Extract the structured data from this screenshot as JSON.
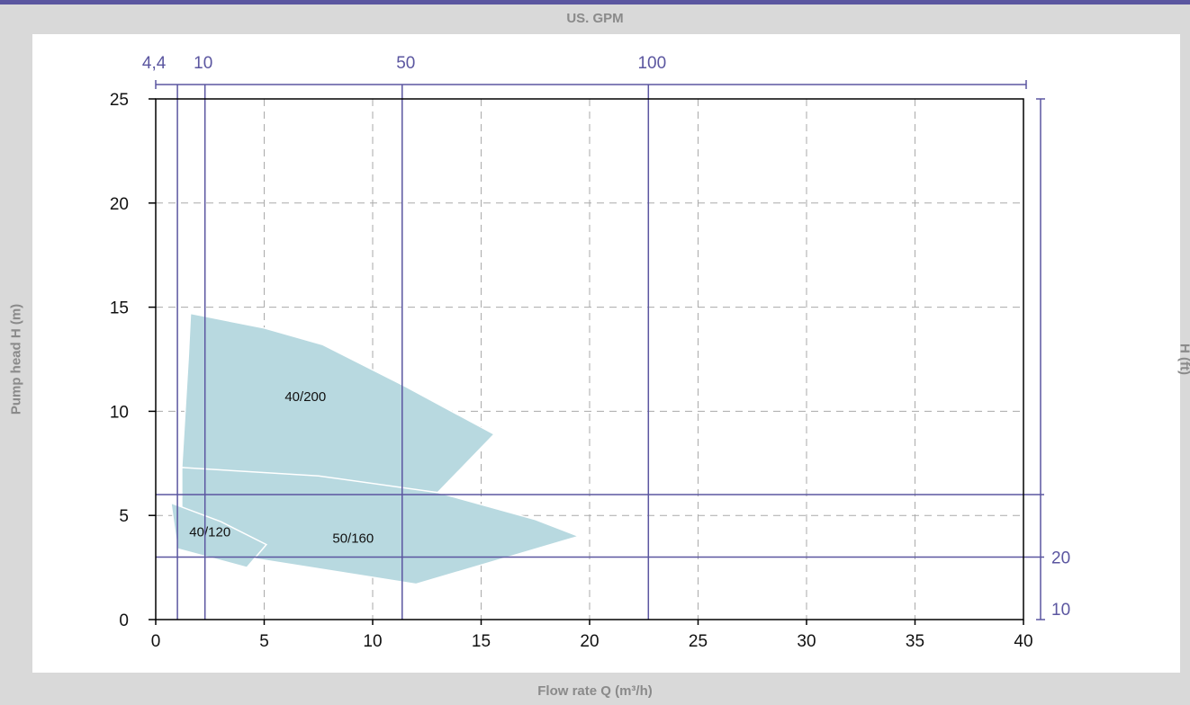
{
  "chart_data": {
    "type": "area",
    "title": "",
    "top_axis_label": "US. GPM",
    "xlabel": "Flow rate Q (m³/h)",
    "ylabel": "Pump head H (m)",
    "right_axis_label": "H (ft)",
    "xlim": [
      0,
      40
    ],
    "ylim": [
      0,
      25
    ],
    "x_ticks": [
      "0",
      "5",
      "10",
      "15",
      "20",
      "25",
      "30",
      "35",
      "40"
    ],
    "y_ticks": [
      "0",
      "5",
      "10",
      "15",
      "20",
      "25"
    ],
    "grid": true,
    "gpm_ticks": [
      {
        "label": "4,4",
        "x": 1.0
      },
      {
        "label": "10",
        "x": 2.27
      },
      {
        "label": "50",
        "x": 11.36
      },
      {
        "label": "100",
        "x": 22.71
      }
    ],
    "ft_ticks": [
      {
        "label": "20",
        "y": 3.0
      },
      {
        "label": "10",
        "y": 0.5
      }
    ],
    "fill_color": "#b8d9e0",
    "axis_color": "#5b56a0",
    "regions": [
      {
        "name": "40/200",
        "label_at": [
          6.9,
          10.5
        ],
        "points": [
          [
            1.6,
            14.7
          ],
          [
            5,
            14.0
          ],
          [
            7.7,
            13.2
          ],
          [
            11.5,
            11.2
          ],
          [
            15.6,
            8.9
          ],
          [
            13.0,
            6.1
          ],
          [
            1.2,
            7.3
          ],
          [
            1.5,
            12.6
          ]
        ]
      },
      {
        "name": "50/160",
        "label_at": [
          9.1,
          3.7
        ],
        "points": [
          [
            1.2,
            7.3
          ],
          [
            7.5,
            6.9
          ],
          [
            13.0,
            6.1
          ],
          [
            17.5,
            4.8
          ],
          [
            19.5,
            4.0
          ],
          [
            12.0,
            1.7
          ],
          [
            3.5,
            3.1
          ],
          [
            1.2,
            5.2
          ]
        ]
      },
      {
        "name": "40/120",
        "label_at": [
          2.5,
          4.0
        ],
        "points": [
          [
            0.7,
            5.6
          ],
          [
            3.0,
            4.7
          ],
          [
            5.1,
            3.6
          ],
          [
            4.2,
            2.5
          ],
          [
            1.0,
            3.4
          ]
        ]
      }
    ]
  }
}
